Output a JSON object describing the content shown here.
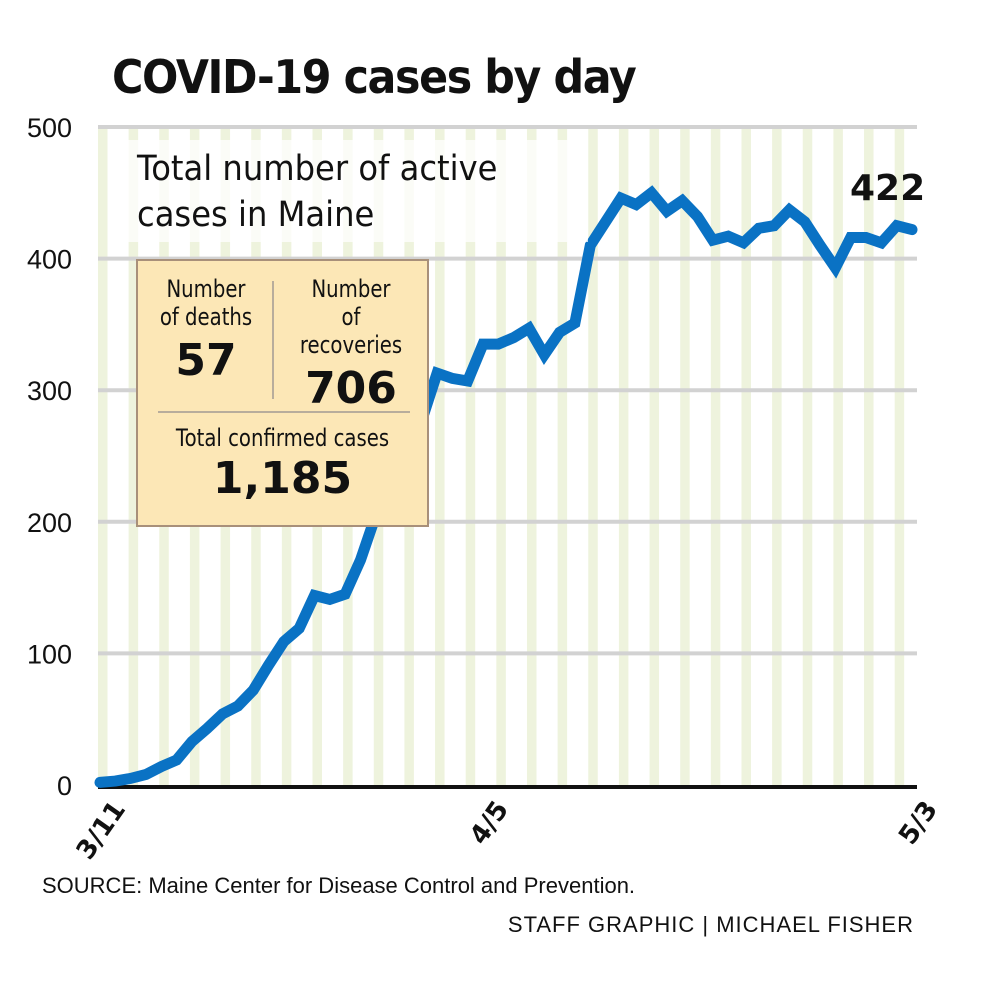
{
  "chart_data": {
    "type": "line",
    "title": "COVID-19 cases by day",
    "subtitle": "Total number of active cases in Maine",
    "xlabel": "",
    "ylabel": "",
    "ylim": [
      0,
      500
    ],
    "yticks": [
      0,
      100,
      200,
      300,
      400,
      500
    ],
    "ytick_labels": [
      "0",
      "100",
      "200",
      "300",
      "400",
      "500"
    ],
    "xtick_labels": [
      {
        "index": 0,
        "label": "3/11"
      },
      {
        "index": 25,
        "label": "4/5"
      },
      {
        "index": 53,
        "label": "5/3"
      }
    ],
    "grid": true,
    "x_start": "3/11",
    "x_end": "5/3",
    "series": [
      {
        "name": "Active cases",
        "color": "#0a72c4",
        "values": [
          2,
          3,
          5,
          8,
          14,
          19,
          33,
          43,
          54,
          60,
          72,
          91,
          109,
          119,
          144,
          141,
          145,
          171,
          205,
          236,
          262,
          277,
          313,
          309,
          307,
          335,
          335,
          340,
          347,
          327,
          344,
          351,
          410,
          428,
          446,
          441,
          450,
          436,
          444,
          432,
          414,
          417,
          412,
          423,
          425,
          437,
          428,
          410,
          393,
          416,
          416,
          412,
          425,
          422
        ]
      }
    ],
    "end_label": "422",
    "annotations": {
      "deaths_label": "Number of deaths",
      "deaths_value": "57",
      "recoveries_label": "Number of recoveries",
      "recoveries_value": "706",
      "total_label": "Total confirmed cases",
      "total_value": "1,185"
    }
  },
  "header": {
    "title": "COVID-19 cases by day"
  },
  "subtitle": {
    "line1": "Total number of active",
    "line2": "cases in Maine"
  },
  "infobox": {
    "deaths_label_1": "Number",
    "deaths_label_2": "of deaths",
    "deaths_value": "57",
    "recoveries_label_1": "Number",
    "recoveries_label_2": "of recoveries",
    "recoveries_value": "706",
    "total_label": "Total confirmed cases",
    "total_value": "1,185"
  },
  "footer": {
    "source": "SOURCE: Maine Center for Disease Control and Prevention.",
    "credit": "STAFF GRAPHIC | MICHAEL FISHER"
  },
  "colors": {
    "line": "#0a72c4",
    "stripe": "#eef3dd",
    "gridline": "#d2d2d2",
    "infobox_bg": "#fce7b6"
  }
}
